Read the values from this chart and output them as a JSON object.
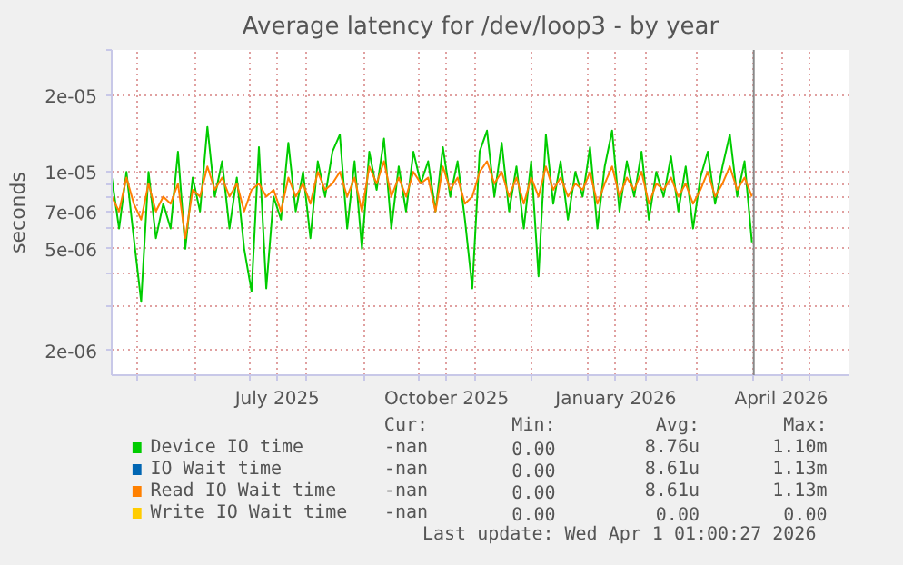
{
  "chart_data": {
    "type": "line",
    "title": "Average latency for /dev/loop3 - by year",
    "ylabel": "seconds",
    "x": [
      "2025-04-17",
      "2025-04-21",
      "2025-04-25",
      "2025-04-29",
      "2025-05-03",
      "2025-05-07",
      "2025-05-11",
      "2025-05-15",
      "2025-05-19",
      "2025-05-23",
      "2025-05-27",
      "2025-05-31",
      "2025-06-04",
      "2025-06-08",
      "2025-06-12",
      "2025-06-16",
      "2025-06-20",
      "2025-06-24",
      "2025-06-28",
      "2025-07-02",
      "2025-07-06",
      "2025-07-10",
      "2025-07-14",
      "2025-07-18",
      "2025-07-22",
      "2025-07-26",
      "2025-07-30",
      "2025-08-03",
      "2025-08-07",
      "2025-08-11",
      "2025-08-15",
      "2025-08-19",
      "2025-08-23",
      "2025-08-27",
      "2025-08-31",
      "2025-09-04",
      "2025-09-08",
      "2025-09-12",
      "2025-09-16",
      "2025-09-20",
      "2025-09-24",
      "2025-09-28",
      "2025-10-02",
      "2025-10-06",
      "2025-10-10",
      "2025-10-14",
      "2025-10-18",
      "2025-10-22",
      "2025-10-26",
      "2025-10-30",
      "2025-11-03",
      "2025-11-07",
      "2025-11-11",
      "2025-11-15",
      "2025-11-19",
      "2025-11-23",
      "2025-11-27",
      "2025-12-01",
      "2025-12-05",
      "2025-12-09",
      "2025-12-13",
      "2025-12-17",
      "2025-12-21",
      "2025-12-25",
      "2025-12-29",
      "2026-01-02",
      "2026-01-06",
      "2026-01-10",
      "2026-01-14",
      "2026-01-18",
      "2026-01-22",
      "2026-01-26",
      "2026-01-30",
      "2026-02-03",
      "2026-02-07",
      "2026-02-11",
      "2026-02-15",
      "2026-02-19",
      "2026-02-23",
      "2026-02-27",
      "2026-03-03",
      "2026-03-07",
      "2026-03-11",
      "2026-03-15",
      "2026-03-19",
      "2026-03-23",
      "2026-03-27",
      "2026-03-31"
    ],
    "series": [
      {
        "name": "Device IO time",
        "color": "#00cc00",
        "values": [
          9.5e-06,
          6e-06,
          1e-05,
          5.5e-06,
          3.1e-06,
          1e-05,
          5.5e-06,
          7.5e-06,
          6e-06,
          1.2e-05,
          5e-06,
          9.5e-06,
          7e-06,
          1.5e-05,
          8e-06,
          1.1e-05,
          6e-06,
          9.5e-06,
          5e-06,
          3.4e-06,
          1.25e-05,
          3.5e-06,
          8e-06,
          6.5e-06,
          1.3e-05,
          7e-06,
          1e-05,
          5.5e-06,
          1.1e-05,
          8e-06,
          1.2e-05,
          1.4e-05,
          6e-06,
          1.1e-05,
          5e-06,
          1.2e-05,
          8.5e-06,
          1.35e-05,
          6e-06,
          1.05e-05,
          7e-06,
          1.2e-05,
          9e-06,
          1.1e-05,
          7e-06,
          1.25e-05,
          8e-06,
          1.1e-05,
          6.5e-06,
          3.5e-06,
          1.2e-05,
          1.45e-05,
          8e-06,
          1.3e-05,
          7e-06,
          1.05e-05,
          6e-06,
          1.1e-05,
          3.9e-06,
          1.4e-05,
          7.5e-06,
          1.1e-05,
          6.5e-06,
          1e-05,
          8e-06,
          1.25e-05,
          6e-06,
          1.05e-05,
          1.45e-05,
          7e-06,
          1.1e-05,
          8e-06,
          1.2e-05,
          6.5e-06,
          1e-05,
          8e-06,
          1.15e-05,
          7e-06,
          1.05e-05,
          6e-06,
          9.5e-06,
          1.2e-05,
          7.5e-06,
          1.05e-05,
          1.4e-05,
          8e-06,
          1.1e-05,
          5.3e-06
        ]
      },
      {
        "name": "IO Wait time",
        "color": "#0066b3",
        "values": [
          null,
          null,
          null,
          null,
          null,
          null,
          null,
          null,
          null,
          null,
          null,
          null,
          null,
          null,
          null,
          null,
          null,
          null,
          null,
          null,
          null,
          null,
          null,
          null,
          null,
          null,
          null,
          null,
          null,
          null,
          null,
          null,
          null,
          null,
          null,
          null,
          null,
          null,
          null,
          null,
          null,
          null,
          null,
          null,
          null,
          null,
          null,
          null,
          null,
          null,
          null,
          null,
          null,
          null,
          null,
          null,
          null,
          null,
          null,
          null,
          null,
          null,
          null,
          null,
          null,
          null,
          null,
          null,
          null,
          null,
          null,
          null,
          null,
          null,
          null,
          null,
          null,
          null,
          null,
          null,
          null,
          null,
          null,
          null,
          null,
          null,
          null,
          null
        ]
      },
      {
        "name": "Read IO Wait time",
        "color": "#ff8000",
        "values": [
          8e-06,
          7e-06,
          9.5e-06,
          7.5e-06,
          6.5e-06,
          9e-06,
          7e-06,
          8e-06,
          7.5e-06,
          9e-06,
          5.5e-06,
          8.5e-06,
          8e-06,
          1.05e-05,
          8.5e-06,
          9.5e-06,
          8e-06,
          9e-06,
          7e-06,
          8.5e-06,
          9e-06,
          8e-06,
          8.5e-06,
          7e-06,
          9.5e-06,
          8e-06,
          9e-06,
          7.5e-06,
          1e-05,
          8.5e-06,
          9e-06,
          1e-05,
          8e-06,
          9.5e-06,
          7e-06,
          1.05e-05,
          9e-06,
          1.1e-05,
          8e-06,
          9.5e-06,
          8e-06,
          1e-05,
          9e-06,
          9.5e-06,
          7e-06,
          1.05e-05,
          8.5e-06,
          9.5e-06,
          7.5e-06,
          8e-06,
          1e-05,
          1.1e-05,
          9e-06,
          1e-05,
          8e-06,
          9.5e-06,
          7.5e-06,
          9.5e-06,
          8e-06,
          1.05e-05,
          8.5e-06,
          9.5e-06,
          8e-06,
          9e-06,
          8.5e-06,
          1e-05,
          7.5e-06,
          9e-06,
          1.05e-05,
          8e-06,
          9.5e-06,
          8.5e-06,
          1e-05,
          7.5e-06,
          9e-06,
          8.5e-06,
          9.5e-06,
          8e-06,
          9e-06,
          7.5e-06,
          8.5e-06,
          1e-05,
          8e-06,
          9e-06,
          1.05e-05,
          8.5e-06,
          9.5e-06,
          8e-06
        ]
      },
      {
        "name": "Write IO Wait time",
        "color": "#ffcc00",
        "values": [
          null,
          null,
          null,
          null,
          null,
          null,
          null,
          null,
          null,
          null,
          null,
          null,
          null,
          null,
          null,
          null,
          null,
          null,
          null,
          null,
          null,
          null,
          null,
          null,
          null,
          null,
          null,
          null,
          null,
          null,
          null,
          null,
          null,
          null,
          null,
          null,
          null,
          null,
          null,
          null,
          null,
          null,
          null,
          null,
          null,
          null,
          null,
          null,
          null,
          null,
          null,
          null,
          null,
          null,
          null,
          null,
          null,
          null,
          null,
          null,
          null,
          null,
          null,
          null,
          null,
          null,
          null,
          null,
          null,
          null,
          null,
          null,
          null,
          null,
          null,
          null,
          null,
          null,
          null,
          null,
          null,
          null,
          null,
          null,
          null,
          null,
          null,
          null
        ]
      }
    ],
    "log": "y",
    "ylim": [
      1.6e-06,
      3e-05
    ],
    "yticks": [
      {
        "value": 2e-06,
        "label": "2e-06"
      },
      {
        "value": 3e-06,
        "label": null
      },
      {
        "value": 4e-06,
        "label": null
      },
      {
        "value": 5e-06,
        "label": "5e-06"
      },
      {
        "value": 6e-06,
        "label": null
      },
      {
        "value": 7e-06,
        "label": "7e-06"
      },
      {
        "value": 8e-06,
        "label": null
      },
      {
        "value": 9e-06,
        "label": null
      },
      {
        "value": 1e-05,
        "label": "1e-05"
      },
      {
        "value": 2e-05,
        "label": "2e-05"
      },
      {
        "value": 3e-05,
        "label": null
      }
    ],
    "xlim": [
      "2025-04-17",
      "2026-05-23"
    ],
    "xticks": [
      {
        "value": "2025-05-01",
        "label": null
      },
      {
        "value": "2025-06-01",
        "label": null
      },
      {
        "value": "2025-07-01",
        "label": null
      },
      {
        "value": "2025-07-16",
        "label": "July 2025"
      },
      {
        "value": "2025-08-01",
        "label": null
      },
      {
        "value": "2025-09-01",
        "label": null
      },
      {
        "value": "2025-10-01",
        "label": null
      },
      {
        "value": "2025-10-16",
        "label": "October 2025"
      },
      {
        "value": "2025-11-01",
        "label": null
      },
      {
        "value": "2025-12-01",
        "label": null
      },
      {
        "value": "2026-01-01",
        "label": null
      },
      {
        "value": "2026-01-16",
        "label": "January 2026"
      },
      {
        "value": "2026-02-01",
        "label": null
      },
      {
        "value": "2026-03-01",
        "label": null
      },
      {
        "value": "2026-04-01",
        "label": null
      },
      {
        "value": "2026-04-16",
        "label": "April 2026"
      },
      {
        "value": "2026-05-01",
        "label": null
      }
    ],
    "ref_lines": [
      {
        "axis": "x",
        "value": "2026-04-01",
        "color": "#888888"
      }
    ],
    "grid": true,
    "legend": "bottom",
    "marker": "none",
    "line_style": "solid",
    "annotations": [
      "Cur:",
      "Min:",
      "Avg:",
      "Max:",
      "-nan",
      "0.00",
      "8.76u",
      "1.10m",
      "-nan",
      "0.00",
      "8.61u",
      "1.13m",
      "-nan",
      "0.00",
      "8.61u",
      "1.13m",
      "-nan",
      "0.00",
      "0.00",
      "0.00",
      "Last update: Wed Apr  1 01:00:27 2026"
    ]
  }
}
